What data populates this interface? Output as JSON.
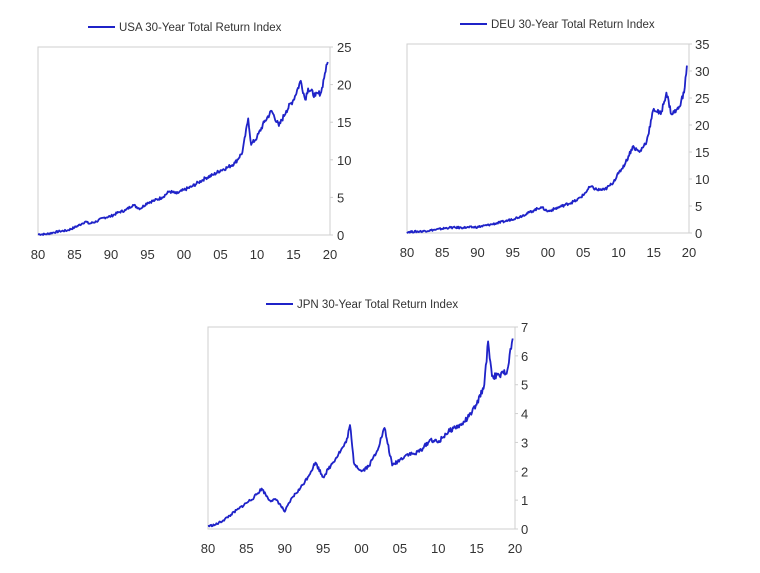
{
  "chart_data": [
    {
      "type": "line",
      "legend": "USA 30-Year Total Return Index",
      "x_ticks": [
        "80",
        "85",
        "90",
        "95",
        "00",
        "05",
        "10",
        "15",
        "20"
      ],
      "y_ticks": [
        "0",
        "5",
        "10",
        "15",
        "20",
        "25"
      ],
      "xlim": [
        1980,
        2020
      ],
      "ylim": [
        0,
        25
      ],
      "grid": false,
      "legend_position": "top-center",
      "color": "#1f23c8",
      "series": [
        {
          "x": [
            1980,
            1981,
            1982,
            1983,
            1984,
            1985,
            1986,
            1986.5,
            1987,
            1988,
            1989,
            1990,
            1991,
            1992,
            1993,
            1994,
            1995,
            1996,
            1997,
            1998,
            1999,
            2000,
            2001,
            2002,
            2003,
            2004,
            2005,
            2006,
            2007,
            2008,
            2008.8,
            2009.2,
            2010,
            2011,
            2012,
            2013,
            2014,
            2015,
            2016,
            2016.6,
            2017,
            2018,
            2018.8,
            2019.3,
            2019.7
          ],
          "y": [
            0.1,
            0.1,
            0.3,
            0.5,
            0.6,
            1.0,
            1.5,
            1.8,
            1.5,
            1.8,
            2.3,
            2.5,
            3.0,
            3.3,
            4.0,
            3.5,
            4.3,
            4.6,
            5.0,
            5.8,
            5.5,
            6.0,
            6.4,
            7.0,
            7.6,
            8.0,
            8.6,
            9.0,
            9.6,
            11.0,
            15.5,
            12.0,
            13.0,
            15.0,
            16.5,
            14.5,
            16.5,
            18.0,
            20.5,
            18.0,
            19.5,
            18.5,
            19.0,
            21.5,
            23.0
          ]
        }
      ]
    },
    {
      "type": "line",
      "legend": "DEU 30-Year Total Return Index",
      "x_ticks": [
        "80",
        "85",
        "90",
        "95",
        "00",
        "05",
        "10",
        "15",
        "20"
      ],
      "y_ticks": [
        "0",
        "5",
        "10",
        "15",
        "20",
        "25",
        "30",
        "35"
      ],
      "xlim": [
        1980,
        2020
      ],
      "ylim": [
        0,
        35
      ],
      "grid": false,
      "legend_position": "top-center",
      "color": "#1f23c8",
      "series": [
        {
          "x": [
            1980,
            1982,
            1984,
            1986,
            1988,
            1990,
            1992,
            1994,
            1996,
            1998,
            1999,
            2000,
            2002,
            2004,
            2005,
            2006,
            2007,
            2008,
            2009,
            2010,
            2011,
            2012,
            2013,
            2014,
            2015,
            2016,
            2016.8,
            2017.5,
            2018.5,
            2019.3,
            2019.7
          ],
          "y": [
            0.2,
            0.3,
            0.6,
            1.0,
            1.0,
            1.1,
            1.6,
            2.2,
            3.0,
            4.2,
            4.8,
            4.0,
            5.0,
            6.0,
            7.0,
            8.6,
            8.0,
            8.0,
            9.0,
            11.0,
            13.0,
            16.0,
            15.0,
            17.0,
            23.0,
            22.0,
            26.0,
            22.0,
            23.0,
            26.0,
            31.0
          ]
        }
      ]
    },
    {
      "type": "line",
      "legend": "JPN 30-Year Total Return Index",
      "x_ticks": [
        "80",
        "85",
        "90",
        "95",
        "00",
        "05",
        "10",
        "15",
        "20"
      ],
      "y_ticks": [
        "0",
        "1",
        "2",
        "3",
        "4",
        "5",
        "6",
        "7"
      ],
      "xlim": [
        1980,
        2020
      ],
      "ylim": [
        0,
        7
      ],
      "grid": false,
      "legend_position": "top-center",
      "color": "#1f23c8",
      "series": [
        {
          "x": [
            1980,
            1981,
            1982,
            1983,
            1984,
            1985,
            1986,
            1987,
            1988,
            1989,
            1990,
            1991,
            1992,
            1993,
            1994,
            1995,
            1996,
            1997,
            1998,
            1998.5,
            1999,
            2000,
            2001,
            2002,
            2003,
            2004,
            2005,
            2006,
            2007,
            2008,
            2009,
            2010,
            2011,
            2012,
            2013,
            2014,
            2015,
            2016,
            2016.5,
            2017,
            2018,
            2019,
            2019.7
          ],
          "y": [
            0.1,
            0.15,
            0.3,
            0.5,
            0.7,
            0.9,
            1.1,
            1.4,
            1.0,
            1.0,
            0.6,
            1.1,
            1.4,
            1.8,
            2.3,
            1.8,
            2.2,
            2.6,
            3.0,
            3.6,
            2.3,
            2.0,
            2.2,
            2.7,
            3.5,
            2.2,
            2.4,
            2.6,
            2.6,
            2.8,
            3.1,
            3.0,
            3.3,
            3.5,
            3.6,
            3.9,
            4.3,
            5.0,
            6.5,
            5.3,
            5.3,
            5.5,
            6.6
          ]
        }
      ]
    }
  ]
}
